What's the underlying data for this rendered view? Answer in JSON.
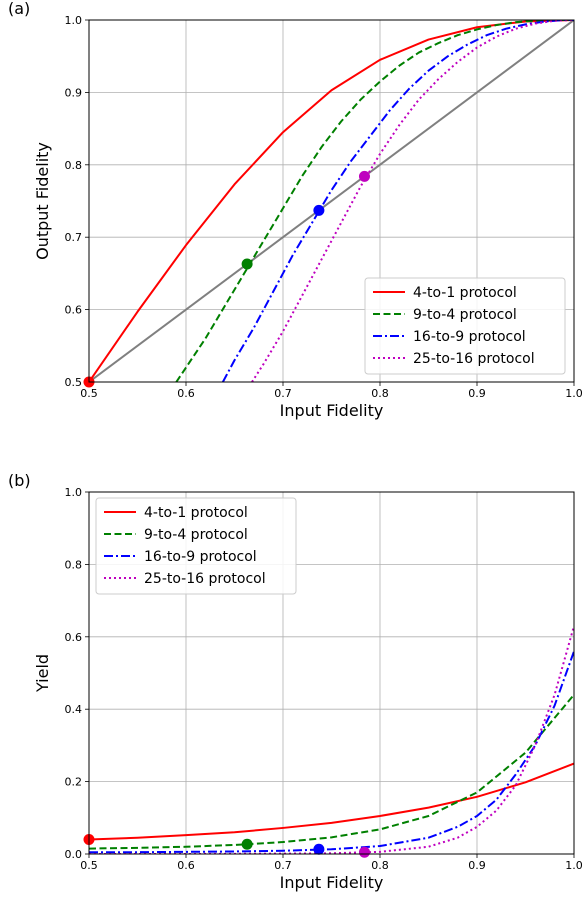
{
  "chart_data": [
    {
      "type": "line",
      "panel_label": "(a)",
      "xlabel": "Input Fidelity",
      "ylabel": "Output Fidelity",
      "xlim": [
        0.5,
        1.0
      ],
      "ylim": [
        0.5,
        1.0
      ],
      "xticks": [
        "0.5",
        "0.6",
        "0.7",
        "0.8",
        "0.9",
        "1.0"
      ],
      "yticks": [
        "0.5",
        "0.6",
        "0.7",
        "0.8",
        "0.9",
        "1.0"
      ],
      "grid": true,
      "legend_position": "lower-right",
      "reference_line": {
        "color": "#808080",
        "points": [
          [
            0.5,
            0.5
          ],
          [
            1.0,
            1.0
          ]
        ]
      },
      "series": [
        {
          "name": "4-to-1 protocol",
          "color": "#ff0000",
          "dash": "solid",
          "x": [
            0.5,
            0.55,
            0.6,
            0.65,
            0.7,
            0.75,
            0.8,
            0.85,
            0.9,
            0.95,
            1.0
          ],
          "y": [
            0.5,
            0.597,
            0.689,
            0.773,
            0.845,
            0.903,
            0.945,
            0.973,
            0.99,
            0.998,
            1.0
          ],
          "marker": [
            0.5,
            0.5
          ]
        },
        {
          "name": "9-to-4 protocol",
          "color": "#008000",
          "dash": "dashed",
          "x": [
            0.59,
            0.6,
            0.62,
            0.64,
            0.66,
            0.68,
            0.7,
            0.72,
            0.74,
            0.76,
            0.78,
            0.8,
            0.82,
            0.84,
            0.86,
            0.88,
            0.9,
            0.92,
            0.94,
            0.96,
            0.98,
            1.0
          ],
          "y": [
            0.5,
            0.52,
            0.56,
            0.605,
            0.65,
            0.695,
            0.74,
            0.785,
            0.825,
            0.86,
            0.89,
            0.915,
            0.937,
            0.955,
            0.968,
            0.979,
            0.987,
            0.993,
            0.997,
            0.999,
            1.0,
            1.0
          ],
          "marker": [
            0.663,
            0.663
          ]
        },
        {
          "name": "16-to-9 protocol",
          "color": "#0000ff",
          "dash": "dashdot",
          "x": [
            0.638,
            0.65,
            0.67,
            0.69,
            0.71,
            0.73,
            0.75,
            0.77,
            0.79,
            0.81,
            0.83,
            0.85,
            0.87,
            0.89,
            0.91,
            0.93,
            0.95,
            0.97,
            0.99,
            1.0
          ],
          "y": [
            0.5,
            0.53,
            0.575,
            0.625,
            0.675,
            0.72,
            0.765,
            0.805,
            0.84,
            0.875,
            0.905,
            0.93,
            0.95,
            0.966,
            0.979,
            0.988,
            0.994,
            0.998,
            1.0,
            1.0
          ],
          "marker": [
            0.737,
            0.737
          ]
        },
        {
          "name": "25-to-16 protocol",
          "color": "#bf00bf",
          "dash": "dotted",
          "x": [
            0.668,
            0.68,
            0.7,
            0.72,
            0.74,
            0.76,
            0.78,
            0.8,
            0.82,
            0.84,
            0.86,
            0.88,
            0.9,
            0.92,
            0.94,
            0.96,
            0.98,
            1.0
          ],
          "y": [
            0.5,
            0.525,
            0.57,
            0.62,
            0.67,
            0.72,
            0.77,
            0.815,
            0.855,
            0.89,
            0.918,
            0.942,
            0.962,
            0.977,
            0.988,
            0.995,
            0.999,
            1.0
          ],
          "marker": [
            0.784,
            0.784
          ]
        }
      ]
    },
    {
      "type": "line",
      "panel_label": "(b)",
      "xlabel": "Input Fidelity",
      "ylabel": "Yield",
      "xlim": [
        0.5,
        1.0
      ],
      "ylim": [
        0.0,
        1.0
      ],
      "xticks": [
        "0.5",
        "0.6",
        "0.7",
        "0.8",
        "0.9",
        "1.0"
      ],
      "yticks": [
        "0.0",
        "0.2",
        "0.4",
        "0.6",
        "0.8",
        "1.0"
      ],
      "grid": true,
      "legend_position": "upper-left",
      "series": [
        {
          "name": "4-to-1 protocol",
          "color": "#ff0000",
          "dash": "solid",
          "x": [
            0.5,
            0.55,
            0.6,
            0.65,
            0.7,
            0.75,
            0.8,
            0.85,
            0.9,
            0.95,
            1.0
          ],
          "y": [
            0.04,
            0.045,
            0.052,
            0.06,
            0.072,
            0.086,
            0.105,
            0.128,
            0.158,
            0.198,
            0.25
          ],
          "marker": [
            0.5,
            0.04
          ]
        },
        {
          "name": "9-to-4 protocol",
          "color": "#008000",
          "dash": "dashed",
          "x": [
            0.5,
            0.55,
            0.6,
            0.65,
            0.7,
            0.75,
            0.8,
            0.85,
            0.9,
            0.95,
            1.0
          ],
          "y": [
            0.015,
            0.017,
            0.02,
            0.025,
            0.033,
            0.046,
            0.068,
            0.105,
            0.17,
            0.28,
            0.44
          ],
          "marker": [
            0.663,
            0.027
          ]
        },
        {
          "name": "16-to-9 protocol",
          "color": "#0000ff",
          "dash": "dashdot",
          "x": [
            0.5,
            0.55,
            0.6,
            0.65,
            0.7,
            0.75,
            0.8,
            0.85,
            0.88,
            0.9,
            0.92,
            0.94,
            0.96,
            0.98,
            1.0
          ],
          "y": [
            0.005,
            0.005,
            0.006,
            0.007,
            0.009,
            0.013,
            0.022,
            0.045,
            0.075,
            0.105,
            0.15,
            0.22,
            0.3,
            0.41,
            0.56
          ],
          "marker": [
            0.737,
            0.013
          ]
        },
        {
          "name": "25-to-16 protocol",
          "color": "#bf00bf",
          "dash": "dotted",
          "x": [
            0.5,
            0.6,
            0.7,
            0.75,
            0.8,
            0.85,
            0.88,
            0.9,
            0.92,
            0.94,
            0.96,
            0.98,
            1.0
          ],
          "y": [
            0.0,
            0.0,
            0.001,
            0.002,
            0.006,
            0.02,
            0.045,
            0.075,
            0.12,
            0.19,
            0.3,
            0.44,
            0.63
          ],
          "marker": [
            0.784,
            0.005
          ]
        }
      ]
    }
  ]
}
